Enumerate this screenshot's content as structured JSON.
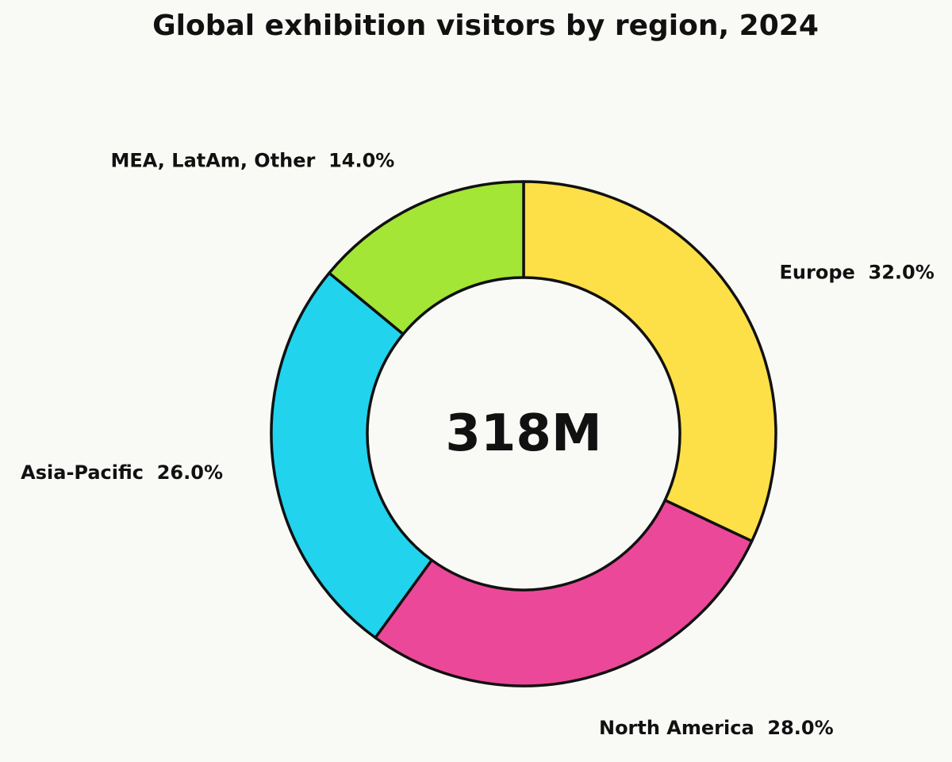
{
  "chart_data": {
    "type": "pie",
    "variant": "donut",
    "title": "Global exhibition visitors by region, 2024",
    "center_label": "318M",
    "start": "top",
    "direction": "clockwise",
    "slices": [
      {
        "label": "Europe",
        "value": 32.0,
        "display": "Europe  32.0%",
        "color": "#fde047"
      },
      {
        "label": "North America",
        "value": 28.0,
        "display": "North America  28.0%",
        "color": "#ec4899"
      },
      {
        "label": "Asia-Pacific",
        "value": 26.0,
        "display": "Asia-Pacific  26.0%",
        "color": "#22d3ee"
      },
      {
        "label": "MEA, LatAm, Other",
        "value": 14.0,
        "display": "MEA, LatAm, Other  14.0%",
        "color": "#a3e635"
      }
    ],
    "edge_color": "#111111",
    "background": "#f9f9f6"
  }
}
